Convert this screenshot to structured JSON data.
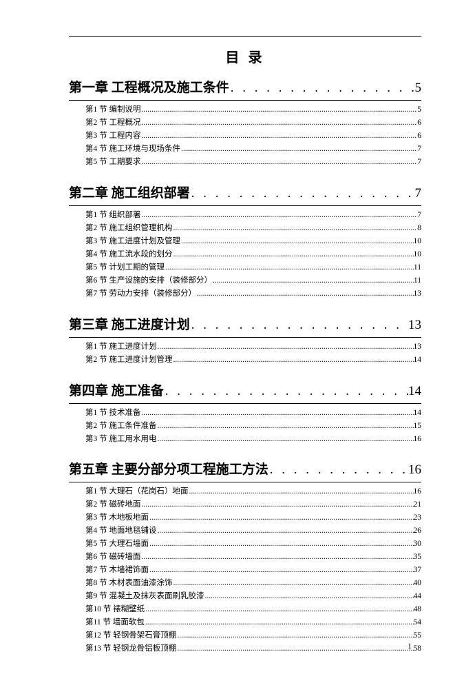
{
  "doc_title": "目 录",
  "page_number": "1",
  "dot_char_chapter": ". . . . . . . . . . . . . . . . . . . . . . . . . . . . . . . . . . . . . . . .",
  "dot_char_sub": "..........................................................................................................................................................................................................",
  "chapters": [
    {
      "label": "第一章 工程概况及施工条件",
      "page": "5",
      "subs": [
        {
          "label": "第1 节 编制说明",
          "page": "5"
        },
        {
          "label": "第2 节 工程概况",
          "page": "6"
        },
        {
          "label": "第3 节 工程内容",
          "page": "6"
        },
        {
          "label": "第4 节 施工环境与现场条件",
          "page": "7"
        },
        {
          "label": "第5 节 工期要求",
          "page": "7"
        }
      ]
    },
    {
      "label": "第二章 施工组织部署",
      "page": "7",
      "subs": [
        {
          "label": "第1 节 组织部署",
          "page": "7"
        },
        {
          "label": "第2 节 施工组织管理机构",
          "page": "8"
        },
        {
          "label": "第3 节 施工进度计划及管理",
          "page": "10"
        },
        {
          "label": "第4 节 施工流水段的划分",
          "page": "10"
        },
        {
          "label": "第5 节 计划工期的管理",
          "page": "11"
        },
        {
          "label": "第6 节 生产设施的安排（装修部分）",
          "page": "11"
        },
        {
          "label": "第7 节 劳动力安排（装修部分）",
          "page": "13"
        }
      ]
    },
    {
      "label": "第三章 施工进度计划",
      "page": "13",
      "subs": [
        {
          "label": "第1 节 施工进度计划",
          "page": "13"
        },
        {
          "label": "第2 节 施工进度计划管理",
          "page": "14"
        }
      ]
    },
    {
      "label": "第四章 施工准备",
      "page": "14",
      "subs": [
        {
          "label": "第1 节 技术准备",
          "page": "14"
        },
        {
          "label": "第2 节 施工条件准备",
          "page": "15"
        },
        {
          "label": "第3 节 施工用水用电",
          "page": "16"
        }
      ]
    },
    {
      "label": "第五章 主要分部分项工程施工方法",
      "page": "16",
      "subs": [
        {
          "label": "第1 节 大理石（花岗石）地面",
          "page": "16"
        },
        {
          "label": "第2 节 磁砖地面",
          "page": "21"
        },
        {
          "label": "第3 节 木地板地面",
          "page": "23"
        },
        {
          "label": "第4 节 地面地毯铺设",
          "page": "26"
        },
        {
          "label": "第5 节 大理石墙面",
          "page": "30"
        },
        {
          "label": "第6 节 磁砖墙面",
          "page": "35"
        },
        {
          "label": "第7 节 木墙裙饰面",
          "page": "37"
        },
        {
          "label": "第8 节 木材表面油漆涂饰",
          "page": "40"
        },
        {
          "label": "第9 节 混凝土及抹灰表面刷乳胶漆",
          "page": "44"
        },
        {
          "label": "第10 节 裱糊壁纸",
          "page": "48"
        },
        {
          "label": "第11 节 墙面软包",
          "page": "54"
        },
        {
          "label": "第12 节 轻钢骨架石膏顶棚",
          "page": "55"
        },
        {
          "label": "第13 节 轻钢龙骨铝板顶棚",
          "page": "58"
        }
      ]
    }
  ]
}
